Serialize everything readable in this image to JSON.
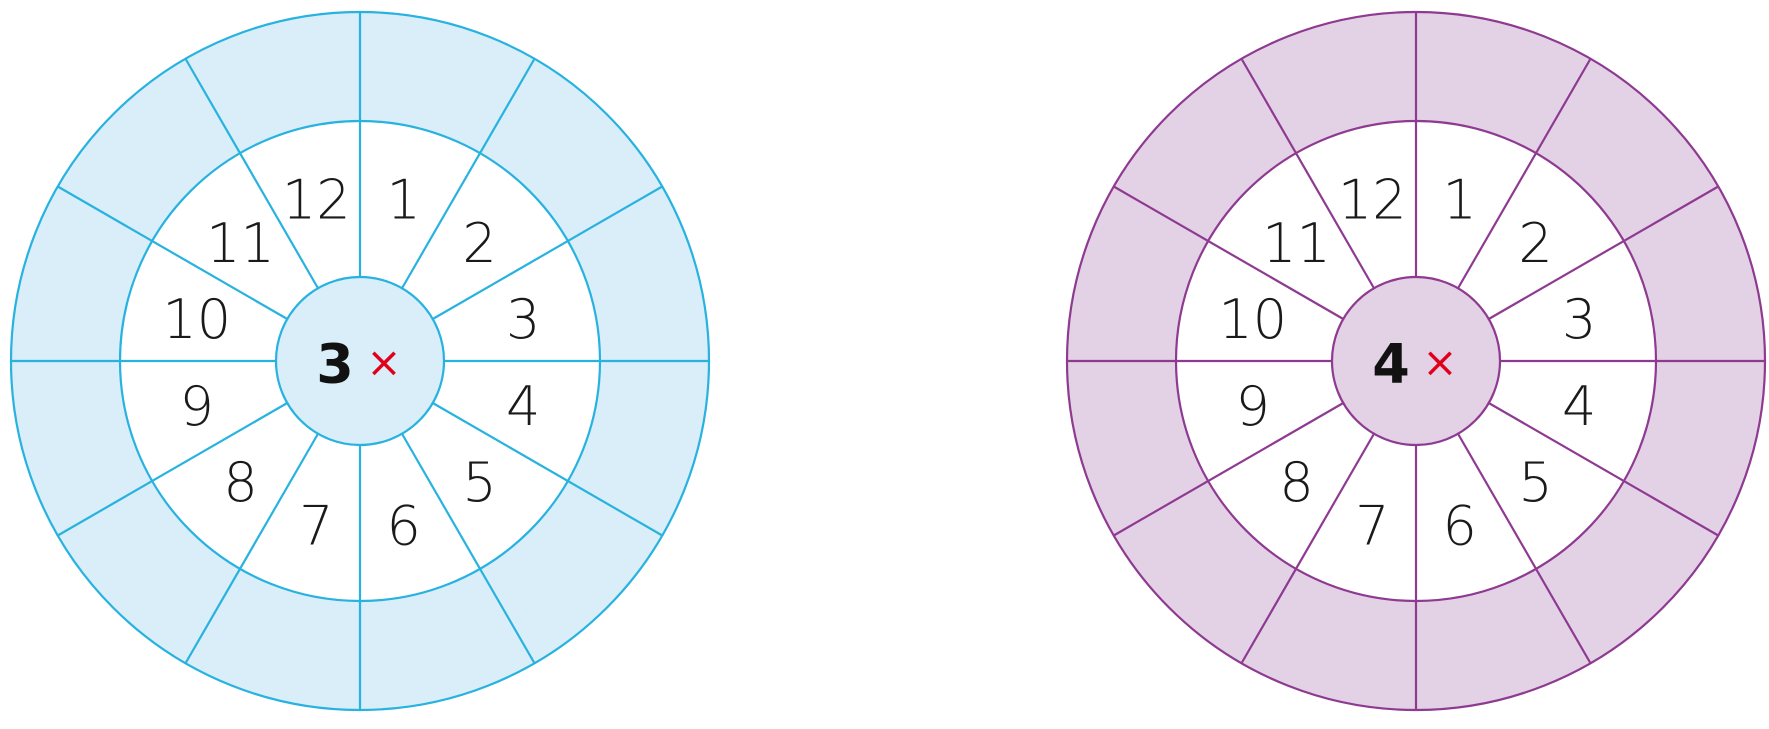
{
  "wheels": [
    {
      "multiplier": "3",
      "operator": "×",
      "numbers": [
        "1",
        "2",
        "3",
        "4",
        "5",
        "6",
        "7",
        "8",
        "9",
        "10",
        "11",
        "12"
      ],
      "outer_answers": [
        "",
        "",
        "",
        "",
        "",
        "",
        "",
        "",
        "",
        "",
        "",
        ""
      ],
      "colors": {
        "stroke": "#27b2e0",
        "fill": "#d9eef8"
      }
    },
    {
      "multiplier": "4",
      "operator": "×",
      "numbers": [
        "1",
        "2",
        "3",
        "4",
        "5",
        "6",
        "7",
        "8",
        "9",
        "10",
        "11",
        "12"
      ],
      "outer_answers": [
        "",
        "",
        "",
        "",
        "",
        "",
        "",
        "",
        "",
        "",
        "",
        ""
      ],
      "colors": {
        "stroke": "#8e3a91",
        "fill": "#e3d2e6"
      }
    }
  ]
}
